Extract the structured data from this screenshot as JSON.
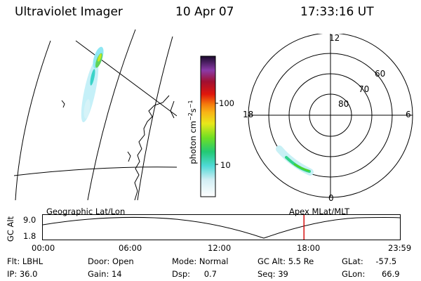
{
  "header": {
    "instrument": "Ultraviolet Imager",
    "date": "10 Apr 07",
    "time": "17:33:16 UT"
  },
  "colorbar": {
    "unit_label": "photon cm",
    "unit_exp1": "−2",
    "unit_s": "s",
    "unit_exp2": "−1",
    "ticks": [
      "100",
      "10"
    ]
  },
  "polar_plot": {
    "mlt_labels": [
      "12",
      "18",
      "6",
      "0"
    ],
    "lat_labels": [
      "60",
      "70",
      "80"
    ]
  },
  "timeline": {
    "left_label": "Geographic Lat/Lon",
    "right_label": "Apex MLat/MLT",
    "axis_label": "GC Alt",
    "y_ticks": [
      "9.0",
      "1.8"
    ],
    "time_ticks": [
      "00:00",
      "06:00",
      "12:00",
      "18:00",
      "23:59"
    ],
    "marker_time_hours": 17.55,
    "marker_color": "#d40000"
  },
  "info": {
    "flt_label": "Flt:",
    "flt_value": "LBHL",
    "ip_label": "IP:",
    "ip_value": "36.0",
    "door_label": "Door:",
    "door_value": "Open",
    "gain_label": "Gain:",
    "gain_value": "14",
    "mode_label": "Mode:",
    "mode_value": "Normal",
    "dsp_label": "Dsp:",
    "dsp_value": "0.7",
    "gcalt_label": "GC Alt:",
    "gcalt_value": "5.5 Re",
    "seq_label": "Seq:",
    "seq_value": "39",
    "glat_label": "GLat:",
    "glat_value": "-57.5",
    "glon_label": "GLon:",
    "glon_value": "66.9"
  },
  "icons": {
    "map": "geographic-map-panel",
    "polar": "polar-magnetic-grid",
    "colorbar": "intensity-colorbar"
  }
}
